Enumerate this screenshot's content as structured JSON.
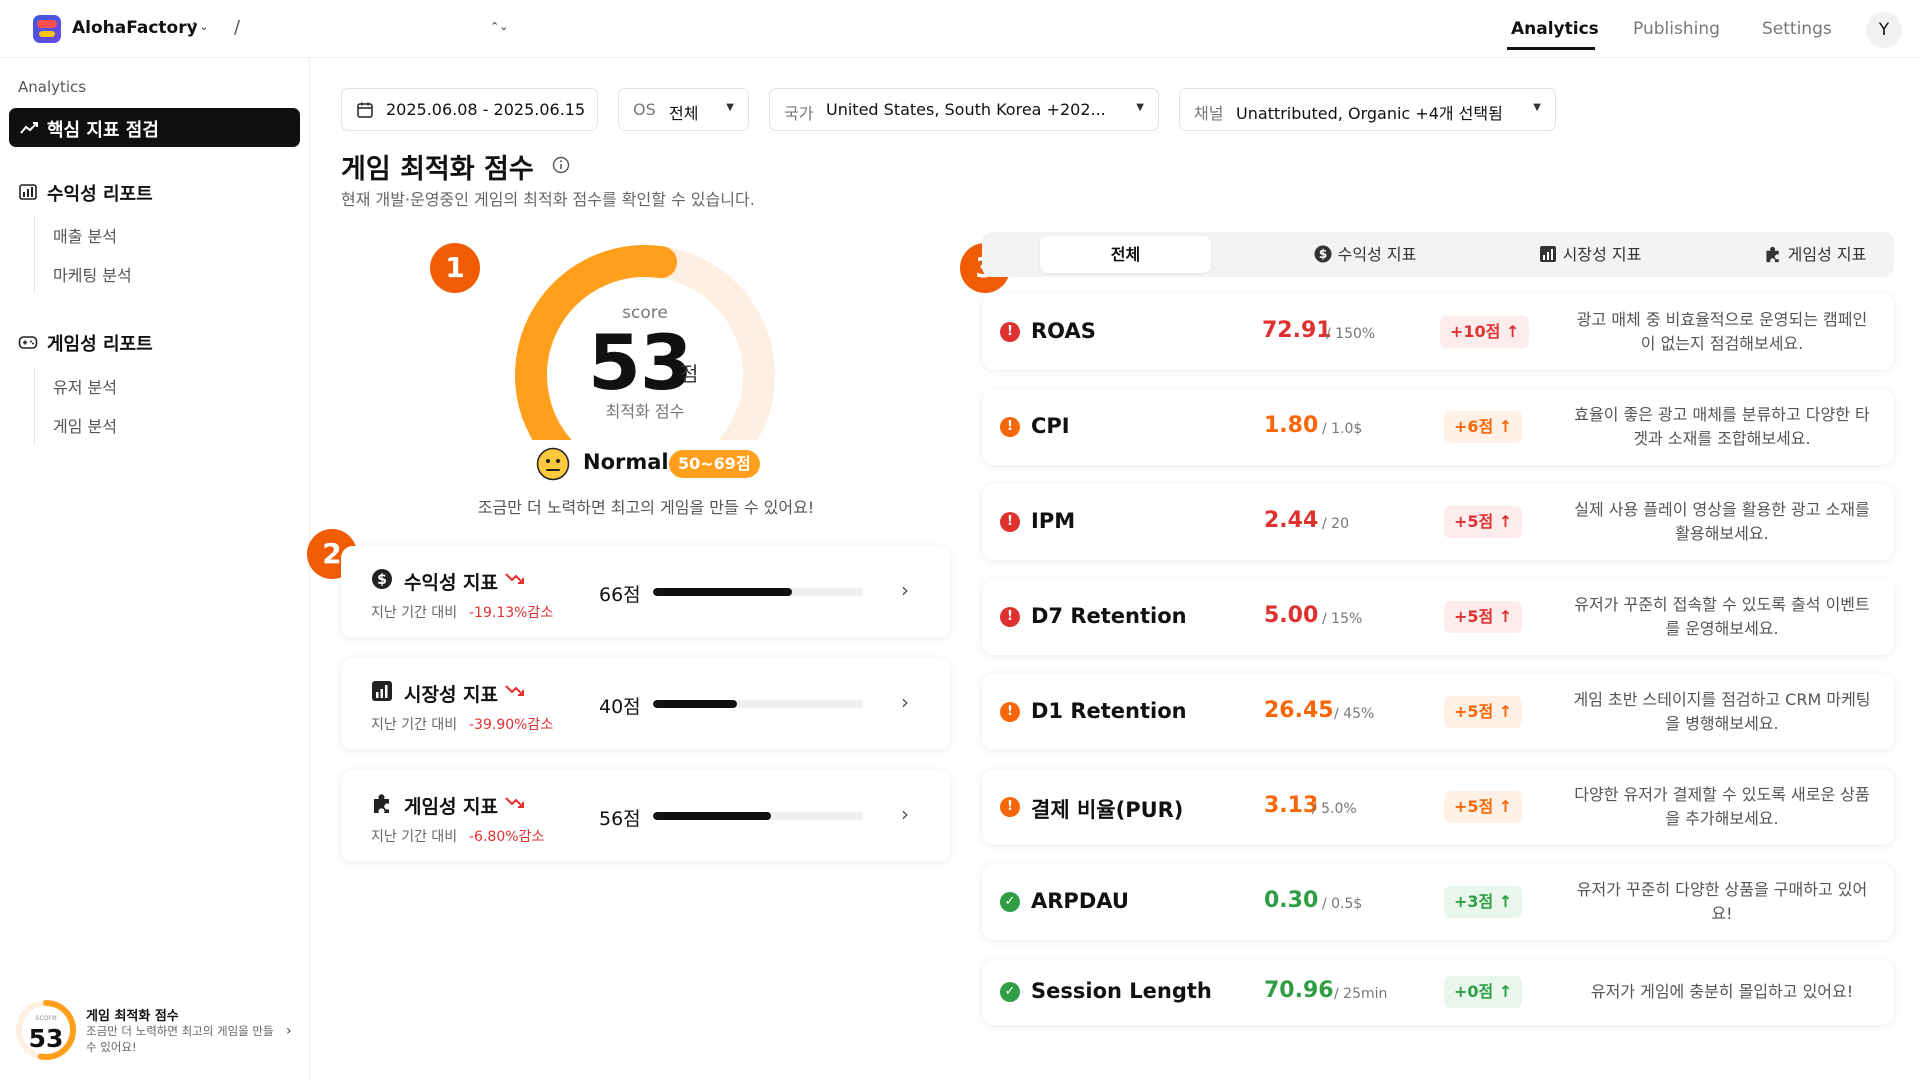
{
  "header": {
    "app_name": "AlohaFactory",
    "app_chevron": "⌃⌄",
    "separator": "/",
    "project_chevron": "⌃⌄",
    "nav": [
      {
        "label": "Analytics",
        "active": true
      },
      {
        "label": "Publishing",
        "active": false
      },
      {
        "label": "Settings",
        "active": false
      }
    ],
    "avatar_initial": "Y"
  },
  "sidebar": {
    "section_label": "Analytics",
    "active_item": "핵심 지표 점검",
    "groups": [
      {
        "label": "수익성 리포트",
        "icon": "bar-chart-icon",
        "items": [
          "매출 분석",
          "마케팅 분석"
        ]
      },
      {
        "label": "게임성 리포트",
        "icon": "gamepad-icon",
        "items": [
          "유저 분석",
          "게임 분석"
        ]
      }
    ],
    "footer": {
      "score_label": "score",
      "score": "53",
      "score_fraction": 0.53,
      "title": "게임 최적화 점수",
      "desc": "조금만 더 노력하면 최고의 게임을 만들 수 있어요!",
      "chevron": "›"
    }
  },
  "filters": {
    "date_range": "2025.06.08 - 2025.06.15",
    "os": {
      "key": "OS",
      "value": "전체"
    },
    "country": {
      "key": "국가",
      "value": "United States, South Korea +202..."
    },
    "channel": {
      "key": "채널",
      "value": "Unattributed, Organic +4개 선택됨"
    },
    "caret": "▼"
  },
  "page": {
    "title": "게임 최적화 점수",
    "subtitle": "현재 개발·운영중인 게임의 최적화 점수를 확인할 수 있습니다."
  },
  "steps": [
    "1",
    "2",
    "3"
  ],
  "gauge": {
    "label": "score",
    "score": "53",
    "score_fraction": 0.53,
    "unit": "점",
    "caption": "최적화 점수",
    "status": "Normal",
    "range": "50~69점",
    "message": "조금만 더 노력하면 최고의 게임을 만들 수 있어요!",
    "colors": {
      "fill": "#ff9f1c",
      "track": "#fdf0e3"
    }
  },
  "categories": [
    {
      "name": "수익성 지표",
      "icon": "dollar-icon",
      "compare": "지난 기간 대비",
      "change": "-19.13%감소",
      "score": "66점",
      "fraction": 0.66,
      "chevron": "›"
    },
    {
      "name": "시장성 지표",
      "icon": "bar-chart-icon",
      "compare": "지난 기간 대비",
      "change": "-39.90%감소",
      "score": "40점",
      "fraction": 0.4,
      "chevron": "›"
    },
    {
      "name": "게임성 지표",
      "icon": "puzzle-icon",
      "compare": "지난 기간 대비",
      "change": "-6.80%감소",
      "score": "56점",
      "fraction": 0.56,
      "chevron": "›"
    }
  ],
  "tabs": [
    {
      "label": "전체",
      "active": true
    },
    {
      "label": "수익성 지표",
      "icon": "dollar-icon"
    },
    {
      "label": "시장성 지표",
      "icon": "bar-chart-icon"
    },
    {
      "label": "게임성 지표",
      "icon": "puzzle-icon"
    }
  ],
  "metrics": [
    {
      "name": "ROAS",
      "status": "bad",
      "value": "72.91",
      "target": "/ 150%",
      "gain": "+10점 ↑",
      "tip": "광고 매체 중 비효율적으로 운영되는 캠페인이 없는지 점검해보세요."
    },
    {
      "name": "CPI",
      "status": "warn",
      "value": "1.80",
      "target": "/ 1.0$",
      "gain": "+6점 ↑",
      "tip": "효율이 좋은 광고 매체를 분류하고 다양한 타겟과 소재를 조합해보세요."
    },
    {
      "name": "IPM",
      "status": "bad",
      "value": "2.44",
      "target": "/ 20",
      "gain": "+5점 ↑",
      "tip": "실제 사용 플레이 영상을 활용한 광고 소재를 활용해보세요."
    },
    {
      "name": "D7 Retention",
      "status": "bad",
      "value": "5.00",
      "target": "/ 15%",
      "gain": "+5점 ↑",
      "tip": "유저가 꾸준히 접속할 수 있도록 출석 이벤트를 운영해보세요."
    },
    {
      "name": "D1 Retention",
      "status": "warn",
      "value": "26.45",
      "target": "/ 45%",
      "gain": "+5점 ↑",
      "tip": "게임 초반 스테이지를 점검하고 CRM 마케팅을 병행해보세요."
    },
    {
      "name": "결제 비율(PUR)",
      "status": "warn",
      "value": "3.13",
      "target": "/ 5.0%",
      "gain": "+5점 ↑",
      "tip": "다양한 유저가 결제할 수 있도록 새로운 상품을 추가해보세요."
    },
    {
      "name": "ARPDAU",
      "status": "good",
      "value": "0.30",
      "target": "/ 0.5$",
      "gain": "+3점 ↑",
      "tip": "유저가 꾸준히 다양한 상품을 구매하고 있어요!"
    },
    {
      "name": "Session Length",
      "status": "good",
      "value": "70.96",
      "target": "/ 25min",
      "gain": "+0점 ↑",
      "tip": "유저가 게임에 충분히 몰입하고 있어요!"
    }
  ],
  "status_styles": {
    "bad": {
      "color": "#e03131",
      "gain_bg": "#fdecec",
      "symbol": "!"
    },
    "warn": {
      "color": "#f76707",
      "gain_bg": "#fff1e6",
      "symbol": "!"
    },
    "good": {
      "color": "#2f9e44",
      "gain_bg": "#e8f6ec",
      "symbol": "✓"
    }
  }
}
